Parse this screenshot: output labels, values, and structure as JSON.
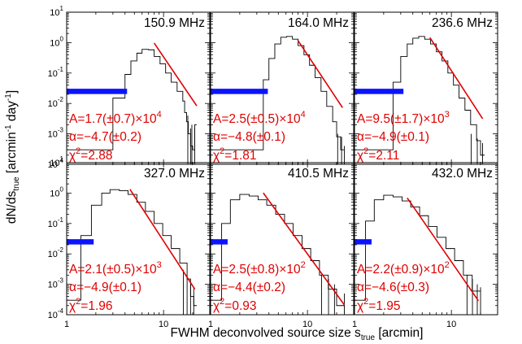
{
  "figure": {
    "xlabel": "FWHM deconvolved source size s",
    "xlabel_sub": "true",
    "xlabel_tail": " [arcmin]",
    "ylabel": "dN/ds",
    "ylabel_sub": "true",
    "ylabel_tail": " [arcmin",
    "ylabel_exp": "-1",
    "ylabel_tail2": " day",
    "ylabel_exp2": "-1",
    "ylabel_end": "]"
  },
  "chart_data": [
    {
      "type": "histogram",
      "title": "150.9 MHz",
      "xscale": "log",
      "yscale": "log",
      "xlim": [
        1,
        30
      ],
      "ylim": [
        0.0001,
        10
      ],
      "x_ticks": [
        "1",
        "10"
      ],
      "y_ticks": [
        "10^1",
        "10^0",
        "10^-1",
        "10^-2",
        "10^-3",
        "10^-4"
      ],
      "hist_edges": [
        1,
        3,
        4,
        4.6,
        5.3,
        6,
        7,
        8,
        9.2,
        10.5,
        12,
        13.8,
        15.8,
        16.5,
        17.3,
        18,
        19,
        20,
        21,
        22
      ],
      "hist_values": [
        0.0003,
        0.015,
        0.09,
        0.25,
        0.45,
        0.6,
        0.58,
        0.35,
        0.2,
        0.1,
        0.05,
        0.025,
        0.012,
        0.005,
        0.0025,
        0.001,
        0.0004,
        0.0003,
        0.002
      ],
      "spikes": [
        [
          17.8,
          0.0001,
          0.004
        ],
        [
          19,
          0.0001,
          0.0015
        ],
        [
          19.6,
          0.0001,
          0.002
        ],
        [
          21,
          0.0001,
          0.0015
        ]
      ],
      "fit": {
        "A_label": "A=1.7(±0.7)×10",
        "A_exp": "4",
        "alpha_label": "α=−4.7(±0.2)",
        "chi2_label": "=2.88",
        "x_range": [
          8,
          22
        ],
        "A": 17000,
        "alpha": -4.7
      },
      "beam": {
        "x": [
          1,
          4.2
        ],
        "y": 0.025
      }
    },
    {
      "type": "histogram",
      "title": "164.0 MHz",
      "xscale": "log",
      "yscale": "log",
      "xlim": [
        1,
        30
      ],
      "ylim": [
        0.0001,
        10
      ],
      "x_ticks": [
        "1",
        "10"
      ],
      "y_ticks": [
        "10^1",
        "10^0",
        "10^-1",
        "10^-2",
        "10^-3",
        "10^-4"
      ],
      "hist_edges": [
        1,
        3.5,
        4,
        4.6,
        5.3,
        6.1,
        7,
        8,
        9.2,
        10.5,
        12,
        13.8,
        15.8,
        18.2,
        20,
        22,
        24
      ],
      "hist_values": [
        0.0003,
        0.06,
        0.3,
        0.9,
        1.5,
        1.6,
        1.3,
        0.8,
        0.4,
        0.18,
        0.07,
        0.025,
        0.008,
        0.0025,
        0.0008,
        0.0003
      ],
      "spikes": [
        [
          20.5,
          0.0001,
          0.001
        ],
        [
          22.5,
          0.0001,
          0.0008
        ],
        [
          24,
          0.0001,
          0.0004
        ]
      ],
      "fit": {
        "A_label": "A=2.5(±0.5)×10",
        "A_exp": "4",
        "alpha_label": "α=−4.8(±0.1)",
        "chi2_label": "=1.81",
        "x_range": [
          8,
          23
        ],
        "A": 25000,
        "alpha": -4.8
      },
      "beam": {
        "x": [
          1,
          3.9
        ],
        "y": 0.025
      }
    },
    {
      "type": "histogram",
      "title": "236.6 MHz",
      "xscale": "log",
      "yscale": "log",
      "xlim": [
        1,
        30
      ],
      "ylim": [
        0.0001,
        10
      ],
      "x_ticks": [
        "1",
        "10"
      ],
      "y_ticks": [
        "10^1",
        "10^0",
        "10^-1",
        "10^-2",
        "10^-3",
        "10^-4"
      ],
      "hist_edges": [
        1,
        2.5,
        3,
        3.5,
        4,
        4.6,
        5.3,
        6.1,
        7,
        8,
        9.2,
        10.5,
        12,
        13.8,
        15.8,
        18.2,
        20,
        22
      ],
      "hist_values": [
        0.0003,
        0.05,
        0.35,
        0.9,
        1.4,
        1.6,
        1.3,
        0.9,
        0.5,
        0.25,
        0.1,
        0.04,
        0.015,
        0.006,
        0.002,
        0.0006,
        0.0002
      ],
      "spikes": [
        [
          16,
          0.0001,
          0.001
        ],
        [
          18.5,
          0.0001,
          0.0007
        ],
        [
          21,
          0.0001,
          0.0005
        ]
      ],
      "fit": {
        "A_label": "A=9.5(±1.7)×10",
        "A_exp": "3",
        "alpha_label": "α=−4.9(±0.1)",
        "chi2_label": "=2.11",
        "x_range": [
          6,
          21
        ],
        "A": 9500,
        "alpha": -4.9
      },
      "beam": {
        "x": [
          1,
          3.2
        ],
        "y": 0.025
      }
    },
    {
      "type": "histogram",
      "title": "327.0 MHz",
      "xscale": "log",
      "yscale": "log",
      "xlim": [
        1,
        30
      ],
      "ylim": [
        0.0001,
        10
      ],
      "x_ticks": [
        "1",
        "10"
      ],
      "y_ticks": [
        "10^1",
        "10^0",
        "10^-1",
        "10^-2",
        "10^-3",
        "10^-4"
      ],
      "hist_edges": [
        1,
        1.4,
        1.8,
        2.3,
        2.8,
        3.5,
        4.3,
        5.3,
        6.5,
        8,
        9.8,
        12,
        14.7,
        17.5,
        19,
        20.5,
        22
      ],
      "hist_values": [
        0.0003,
        0.04,
        0.4,
        1.0,
        1.3,
        1.2,
        0.9,
        0.5,
        0.25,
        0.1,
        0.04,
        0.015,
        0.005,
        0.0015,
        0.0004,
        0.0002
      ],
      "spikes": [
        [
          16,
          0.0001,
          0.003
        ],
        [
          17.5,
          0.0001,
          0.002
        ],
        [
          19,
          0.0001,
          0.001
        ],
        [
          20.5,
          0.0001,
          0.0008
        ]
      ],
      "fit": {
        "A_label": "A=2.1(±0.5)×10",
        "A_exp": "3",
        "alpha_label": "α=−4.9(±0.1)",
        "chi2_label": "=1.96",
        "x_range": [
          4.5,
          21
        ],
        "A": 2100,
        "alpha": -4.9
      },
      "beam": {
        "x": [
          1,
          1.9
        ],
        "y": 0.025
      }
    },
    {
      "type": "histogram",
      "title": "410.5 MHz",
      "xscale": "log",
      "yscale": "log",
      "xlim": [
        1,
        30
      ],
      "ylim": [
        0.0001,
        10
      ],
      "x_ticks": [
        "1",
        "10"
      ],
      "y_ticks": [
        "10^1",
        "10^0",
        "10^-1",
        "10^-2",
        "10^-3",
        "10^-4"
      ],
      "hist_edges": [
        1,
        1.3,
        1.6,
        2,
        2.5,
        3.1,
        3.8,
        4.7,
        5.8,
        7.1,
        8.8,
        10.8,
        13.3,
        16.4,
        20,
        24
      ],
      "hist_values": [
        0.0003,
        0.1,
        0.6,
        0.9,
        0.8,
        0.6,
        0.4,
        0.2,
        0.1,
        0.04,
        0.015,
        0.006,
        0.002,
        0.0007,
        0.0002
      ],
      "spikes": [
        [
          14,
          0.0001,
          0.002
        ],
        [
          16.5,
          0.0001,
          0.0015
        ],
        [
          19,
          0.0001,
          0.001
        ],
        [
          24,
          0.0001,
          0.0005
        ]
      ],
      "fit": {
        "A_label": "A=2.5(±0.8)×10",
        "A_exp": "2",
        "alpha_label": "α=−4.4(±0.2)",
        "chi2_label": "=0.93",
        "x_range": [
          3.5,
          24
        ],
        "A": 250,
        "alpha": -4.4
      },
      "beam": {
        "x": [
          1,
          1.5
        ],
        "y": 0.025
      }
    },
    {
      "type": "histogram",
      "title": "432.0 MHz",
      "xscale": "log",
      "yscale": "log",
      "xlim": [
        1,
        30
      ],
      "ylim": [
        0.0001,
        10
      ],
      "x_ticks": [
        "1",
        "10"
      ],
      "y_ticks": [
        "10^1",
        "10^0",
        "10^-1",
        "10^-2",
        "10^-3",
        "10^-4"
      ],
      "hist_edges": [
        1,
        1.3,
        1.6,
        2,
        2.5,
        3.1,
        3.8,
        4.7,
        5.8,
        7.1,
        8.8,
        10.8,
        13.3,
        16.4,
        20
      ],
      "hist_values": [
        0.0003,
        0.12,
        0.6,
        0.85,
        0.75,
        0.55,
        0.35,
        0.18,
        0.08,
        0.035,
        0.015,
        0.006,
        0.002,
        0.0006
      ],
      "spikes": [
        [
          14.5,
          0.0001,
          0.002
        ],
        [
          16.5,
          0.0001,
          0.0015
        ],
        [
          18.5,
          0.0001,
          0.001
        ],
        [
          20,
          0.0001,
          0.0008
        ]
      ],
      "fit": {
        "A_label": "A=2.2(±0.9)×10",
        "A_exp": "2",
        "alpha_label": "α=−4.6(±0.3)",
        "chi2_label": "=1.95",
        "x_range": [
          3.5,
          19
        ],
        "A": 220,
        "alpha": -4.6
      },
      "beam": {
        "x": [
          1,
          1.5
        ],
        "y": 0.025
      }
    }
  ]
}
